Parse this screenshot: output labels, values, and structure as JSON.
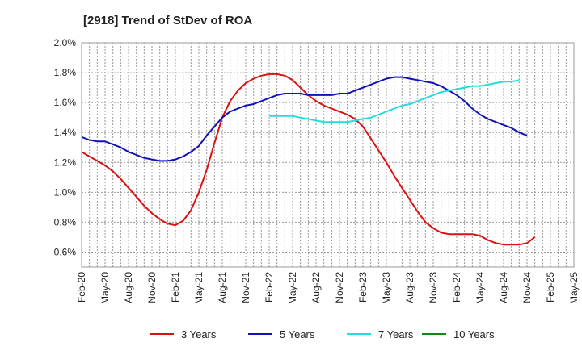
{
  "title": "[2918]  Trend of StDev of ROA",
  "chart_data": {
    "type": "line",
    "title": "[2918]  Trend of StDev of ROA",
    "xlabel": "",
    "ylabel": "",
    "ylim": [
      0.5,
      2.0
    ],
    "yticks": [
      "2.0%",
      "1.8%",
      "1.6%",
      "1.4%",
      "1.2%",
      "1.0%",
      "0.8%",
      "0.6%"
    ],
    "ytick_values": [
      2.0,
      1.8,
      1.6,
      1.4,
      1.2,
      1.0,
      0.8,
      0.6
    ],
    "xticks": [
      "Feb-20",
      "May-20",
      "Aug-20",
      "Nov-20",
      "Feb-21",
      "May-21",
      "Aug-21",
      "Nov-21",
      "Feb-22",
      "May-22",
      "Aug-22",
      "Nov-22",
      "Feb-23",
      "May-23",
      "Aug-23",
      "Nov-23",
      "Feb-24",
      "May-24",
      "Aug-24",
      "Nov-24",
      "Feb-25",
      "May-25"
    ],
    "grid": true,
    "legend_position": "bottom",
    "x_start": "Feb-20",
    "series": [
      {
        "name": "3 Years",
        "color": "#dd1111",
        "start": "Feb-20",
        "values": [
          1.27,
          1.24,
          1.21,
          1.18,
          1.14,
          1.09,
          1.03,
          0.97,
          0.91,
          0.86,
          0.82,
          0.79,
          0.78,
          0.81,
          0.88,
          1.0,
          1.15,
          1.33,
          1.5,
          1.61,
          1.68,
          1.73,
          1.76,
          1.78,
          1.79,
          1.79,
          1.78,
          1.75,
          1.7,
          1.65,
          1.61,
          1.58,
          1.56,
          1.54,
          1.52,
          1.49,
          1.44,
          1.36,
          1.28,
          1.2,
          1.11,
          1.03,
          0.95,
          0.87,
          0.8,
          0.76,
          0.73,
          0.72,
          0.72,
          0.72,
          0.72,
          0.71,
          0.68,
          0.66,
          0.65,
          0.65,
          0.65,
          0.66,
          0.7
        ]
      },
      {
        "name": "5 Years",
        "color": "#1111bb",
        "start": "Feb-20",
        "values": [
          1.37,
          1.35,
          1.34,
          1.34,
          1.32,
          1.3,
          1.27,
          1.25,
          1.23,
          1.22,
          1.21,
          1.21,
          1.22,
          1.24,
          1.27,
          1.31,
          1.38,
          1.44,
          1.5,
          1.54,
          1.56,
          1.58,
          1.59,
          1.61,
          1.63,
          1.65,
          1.66,
          1.66,
          1.66,
          1.65,
          1.65,
          1.65,
          1.65,
          1.66,
          1.66,
          1.68,
          1.7,
          1.72,
          1.74,
          1.76,
          1.77,
          1.77,
          1.76,
          1.75,
          1.74,
          1.73,
          1.71,
          1.68,
          1.65,
          1.61,
          1.56,
          1.52,
          1.49,
          1.47,
          1.45,
          1.43,
          1.4,
          1.38
        ]
      },
      {
        "name": "7 Years",
        "color": "#22dddd",
        "start": "Feb-22",
        "values": [
          1.51,
          1.51,
          1.51,
          1.51,
          1.5,
          1.49,
          1.48,
          1.47,
          1.47,
          1.47,
          1.47,
          1.48,
          1.49,
          1.5,
          1.52,
          1.54,
          1.56,
          1.58,
          1.59,
          1.61,
          1.63,
          1.65,
          1.67,
          1.68,
          1.69,
          1.7,
          1.71,
          1.71,
          1.72,
          1.73,
          1.74,
          1.74,
          1.75
        ]
      },
      {
        "name": "10 Years",
        "color": "#118811",
        "start": "Feb-20",
        "values": []
      }
    ]
  }
}
